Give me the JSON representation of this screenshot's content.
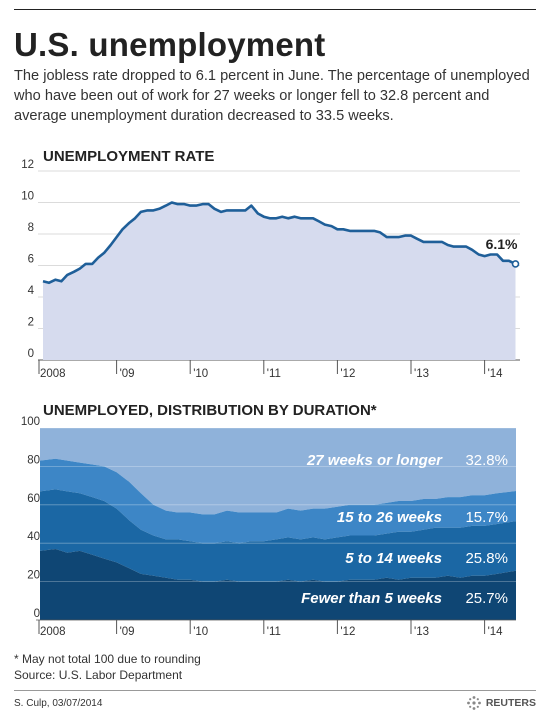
{
  "headline": "U.S. unemployment",
  "subtitle": "The jobless rate dropped to 6.1 percent in June. The percentage of unemployed who have been out of work for 27 weeks or longer fell to 32.8 percent and average unemployment duration decreased to 33.5 weeks.",
  "footnote": "* May not total 100 due to rounding",
  "source": "Source: U.S. Labor Department",
  "credit": "S. Culp, 03/07/2014",
  "brand": "REUTERS",
  "colors": {
    "line": "#1f5f99",
    "area_fill": "#d6dbee",
    "band_27plus": "#8fb2da",
    "band_15to26": "#3d86c6",
    "band_5to14": "#1b67a4",
    "band_under5": "#0f4674"
  },
  "chart_data": [
    {
      "type": "area",
      "title": "UNEMPLOYMENT RATE",
      "xlabel": "",
      "ylabel": "",
      "ylim": [
        0,
        12
      ],
      "yticks": [
        "0",
        "2",
        "4",
        "6",
        "8",
        "10",
        "12"
      ],
      "xticks": [
        "2008",
        "'09",
        "'10",
        "'11",
        "'12",
        "'13",
        "'14"
      ],
      "grid": true,
      "annotation": "6.1%",
      "x": [
        2008.0,
        2008.08,
        2008.17,
        2008.25,
        2008.33,
        2008.42,
        2008.5,
        2008.58,
        2008.67,
        2008.75,
        2008.83,
        2008.92,
        2009.0,
        2009.08,
        2009.17,
        2009.25,
        2009.33,
        2009.42,
        2009.5,
        2009.58,
        2009.67,
        2009.75,
        2009.83,
        2009.92,
        2010.0,
        2010.08,
        2010.17,
        2010.25,
        2010.33,
        2010.42,
        2010.5,
        2010.58,
        2010.67,
        2010.75,
        2010.83,
        2010.92,
        2011.0,
        2011.08,
        2011.17,
        2011.25,
        2011.33,
        2011.42,
        2011.5,
        2011.58,
        2011.67,
        2011.75,
        2011.83,
        2011.92,
        2012.0,
        2012.08,
        2012.17,
        2012.25,
        2012.33,
        2012.42,
        2012.5,
        2012.58,
        2012.67,
        2012.75,
        2012.83,
        2012.92,
        2013.0,
        2013.08,
        2013.17,
        2013.25,
        2013.33,
        2013.42,
        2013.5,
        2013.58,
        2013.67,
        2013.75,
        2013.83,
        2013.92,
        2014.0,
        2014.08,
        2014.17,
        2014.25,
        2014.33,
        2014.42
      ],
      "values": [
        5.0,
        4.9,
        5.1,
        5.0,
        5.4,
        5.6,
        5.8,
        6.1,
        6.1,
        6.5,
        6.8,
        7.3,
        7.8,
        8.3,
        8.7,
        9.0,
        9.4,
        9.5,
        9.5,
        9.6,
        9.8,
        10.0,
        9.9,
        9.9,
        9.8,
        9.8,
        9.9,
        9.9,
        9.6,
        9.4,
        9.5,
        9.5,
        9.5,
        9.5,
        9.8,
        9.3,
        9.1,
        9.0,
        9.0,
        9.1,
        9.0,
        9.1,
        9.0,
        9.0,
        9.0,
        8.8,
        8.6,
        8.5,
        8.3,
        8.3,
        8.2,
        8.2,
        8.2,
        8.2,
        8.2,
        8.1,
        7.8,
        7.8,
        7.8,
        7.9,
        7.9,
        7.7,
        7.5,
        7.5,
        7.5,
        7.5,
        7.3,
        7.2,
        7.2,
        7.2,
        7.0,
        6.7,
        6.6,
        6.7,
        6.7,
        6.3,
        6.3,
        6.1
      ]
    },
    {
      "type": "area",
      "stacked": true,
      "title": "UNEMPLOYED, DISTRIBUTION BY DURATION*",
      "xlabel": "",
      "ylabel": "",
      "ylim": [
        0,
        100
      ],
      "yticks": [
        "0",
        "20",
        "40",
        "60",
        "80",
        "100"
      ],
      "xticks": [
        "2008",
        "'09",
        "'10",
        "'11",
        "'12",
        "'13",
        "'14"
      ],
      "grid": true,
      "x": [
        2008.0,
        2008.17,
        2008.33,
        2008.5,
        2008.67,
        2008.83,
        2009.0,
        2009.17,
        2009.33,
        2009.5,
        2009.67,
        2009.83,
        2010.0,
        2010.17,
        2010.33,
        2010.5,
        2010.67,
        2010.83,
        2011.0,
        2011.17,
        2011.33,
        2011.5,
        2011.67,
        2011.83,
        2012.0,
        2012.17,
        2012.33,
        2012.5,
        2012.67,
        2012.83,
        2013.0,
        2013.17,
        2013.33,
        2013.5,
        2013.67,
        2013.83,
        2014.0,
        2014.17,
        2014.42
      ],
      "cumulative_boundaries": [
        {
          "name": "Fewer than 5 weeks",
          "values": [
            36,
            37,
            35,
            36,
            34,
            32,
            30,
            27,
            24,
            23,
            22,
            21,
            21,
            20,
            20,
            21,
            20,
            20,
            20,
            20,
            21,
            20,
            21,
            20,
            20,
            21,
            21,
            21,
            22,
            21,
            22,
            22,
            22,
            23,
            22,
            23,
            23,
            24,
            25.7
          ]
        },
        {
          "name": "5 to 14 weeks",
          "values": [
            67,
            68,
            67,
            66,
            64,
            62,
            58,
            52,
            47,
            44,
            42,
            42,
            41,
            40,
            40,
            41,
            40,
            41,
            41,
            42,
            43,
            42,
            43,
            42,
            43,
            44,
            44,
            44,
            45,
            46,
            46,
            47,
            48,
            48,
            48,
            49,
            49,
            50,
            51.5
          ]
        },
        {
          "name": "15 to 26 weeks",
          "values": [
            83,
            84,
            83,
            82,
            81,
            80,
            77,
            72,
            66,
            60,
            57,
            56,
            56,
            55,
            55,
            57,
            56,
            56,
            56,
            56,
            58,
            57,
            58,
            58,
            59,
            60,
            60,
            60,
            61,
            62,
            62,
            63,
            63,
            64,
            64,
            65,
            65,
            66,
            67.2
          ]
        },
        {
          "name": "27 weeks or longer",
          "values": [
            100,
            100,
            100,
            100,
            100,
            100,
            100,
            100,
            100,
            100,
            100,
            100,
            100,
            100,
            100,
            100,
            100,
            100,
            100,
            100,
            100,
            100,
            100,
            100,
            100,
            100,
            100,
            100,
            100,
            100,
            100,
            100,
            100,
            100,
            100,
            100,
            100,
            100,
            100
          ]
        }
      ],
      "series": [
        {
          "name": "27 weeks or longer",
          "latest": "32.8%"
        },
        {
          "name": "15 to 26 weeks",
          "latest": "15.7%"
        },
        {
          "name": "5 to 14 weeks",
          "latest": "25.8%"
        },
        {
          "name": "Fewer than 5 weeks",
          "latest": "25.7%"
        }
      ]
    }
  ]
}
